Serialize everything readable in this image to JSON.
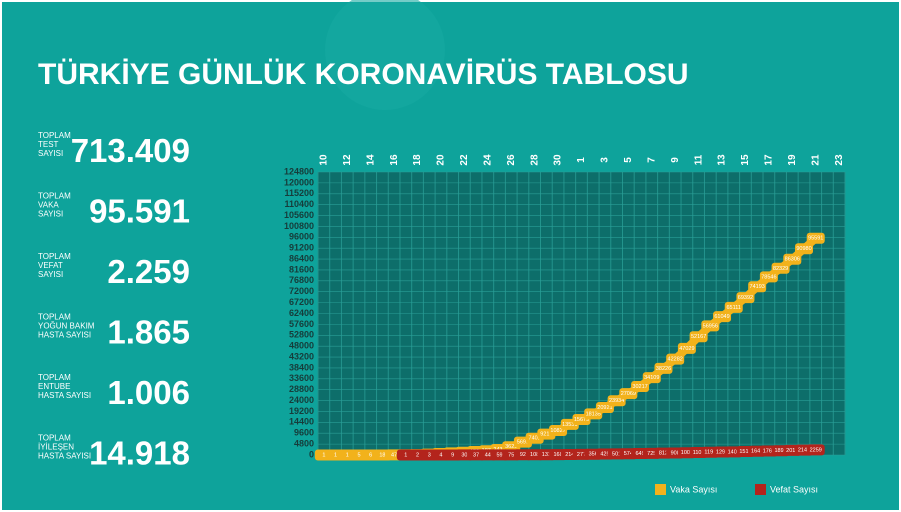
{
  "header": {
    "title": "TÜRKİYE GÜNLÜK KORONAVİRÜS TABLOSU"
  },
  "stats": [
    {
      "label": [
        "TOPLAM",
        "TEST",
        "SAYISI"
      ],
      "value": "713.409"
    },
    {
      "label": [
        "TOPLAM",
        "VAKA",
        "SAYISI"
      ],
      "value": "95.591"
    },
    {
      "label": [
        "TOPLAM",
        "VEFAT",
        "SAYISI"
      ],
      "value": "2.259"
    },
    {
      "label": [
        "TOPLAM",
        "YOĞUN BAKIM",
        "HASTA SAYISI"
      ],
      "value": "1.865"
    },
    {
      "label": [
        "TOPLAM",
        "ENTUBE",
        "HASTA SAYISI"
      ],
      "value": "1.006"
    },
    {
      "label": [
        "TOPLAM",
        "İYİLEŞEN",
        "HASTA SAYISI"
      ],
      "value": "14.918"
    }
  ],
  "chart_data": {
    "type": "line",
    "categories": [
      "10",
      null,
      "12",
      null,
      "14",
      null,
      "16",
      null,
      "18",
      null,
      "20",
      null,
      "22",
      null,
      "24",
      null,
      "26",
      null,
      "28",
      null,
      "30",
      null,
      "1",
      null,
      "3",
      null,
      "5",
      null,
      "7",
      null,
      "9",
      null,
      "11",
      null,
      "13",
      null,
      "15",
      null,
      "17",
      null,
      "19",
      null,
      "21",
      null,
      "23"
    ],
    "series": [
      {
        "name": "Vaka Sayısı",
        "color": "#f2b21b",
        "values": [
          1,
          1,
          1,
          5,
          6,
          18,
          47,
          98,
          191,
          359,
          670,
          947,
          1236,
          1529,
          1872,
          2433,
          3629,
          5698,
          7402,
          9217,
          10827,
          13531,
          15679,
          18135,
          20921,
          23934,
          27069,
          30217,
          34109,
          38226,
          42282,
          47029,
          52167,
          56956,
          61049,
          65111,
          69392,
          74193,
          78546,
          82329,
          86306,
          90980,
          95591,
          null,
          null
        ]
      },
      {
        "name": "Vefat Sayısı",
        "color": "#b3241c",
        "values": [
          null,
          null,
          null,
          null,
          null,
          null,
          null,
          1,
          2,
          3,
          4,
          9,
          30,
          37,
          44,
          59,
          75,
          92,
          108,
          131,
          168,
          214,
          277,
          356,
          425,
          501,
          574,
          649,
          725,
          812,
          908,
          1006,
          1101,
          1198,
          1296,
          1403,
          1518,
          1643,
          1769,
          1890,
          2017,
          2140,
          2259,
          null,
          null
        ]
      }
    ],
    "ylim": [
      0,
      124800
    ],
    "yticks": [
      0,
      4800,
      9600,
      14400,
      19200,
      24000,
      28800,
      33600,
      38400,
      43200,
      48000,
      52800,
      57600,
      62400,
      67200,
      72000,
      76800,
      81600,
      86400,
      91200,
      96000,
      100800,
      105600,
      110400,
      115200,
      120000,
      124800
    ],
    "grid": true,
    "legend": "bottom-right"
  }
}
